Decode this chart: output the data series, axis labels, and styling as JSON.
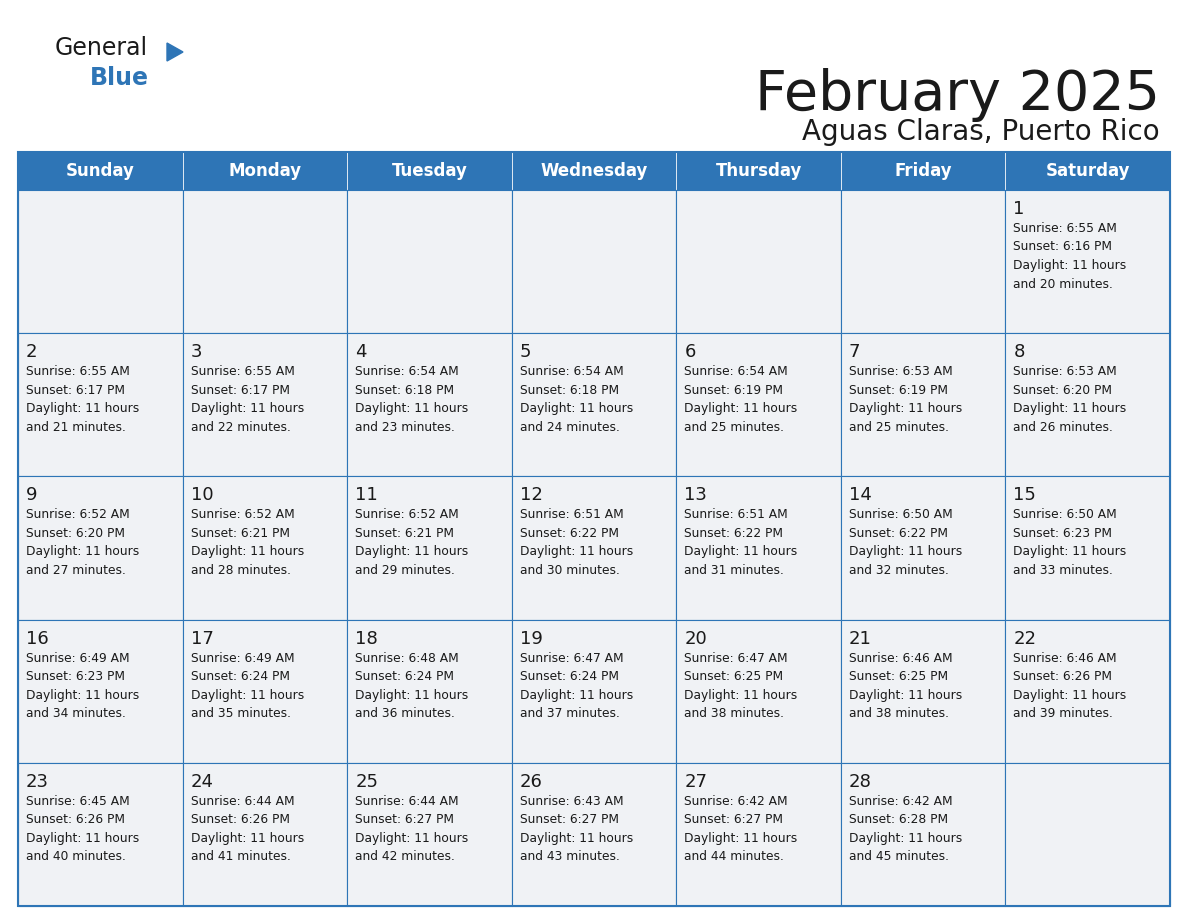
{
  "title": "February 2025",
  "subtitle": "Aguas Claras, Puerto Rico",
  "days_of_week": [
    "Sunday",
    "Monday",
    "Tuesday",
    "Wednesday",
    "Thursday",
    "Friday",
    "Saturday"
  ],
  "header_bg": "#2e75b6",
  "header_text": "#ffffff",
  "cell_bg": "#f0f2f5",
  "cell_bg_alt": "#ffffff",
  "cell_border": "#2e75b6",
  "day_number_color": "#1a1a1a",
  "info_text_color": "#1a1a1a",
  "title_color": "#1a1a1a",
  "logo_general_color": "#1a1a1a",
  "logo_blue_color": "#2e75b6",
  "calendar_data": [
    [
      null,
      null,
      null,
      null,
      null,
      null,
      1
    ],
    [
      2,
      3,
      4,
      5,
      6,
      7,
      8
    ],
    [
      9,
      10,
      11,
      12,
      13,
      14,
      15
    ],
    [
      16,
      17,
      18,
      19,
      20,
      21,
      22
    ],
    [
      23,
      24,
      25,
      26,
      27,
      28,
      null
    ]
  ],
  "sunrise": {
    "1": "6:55 AM",
    "2": "6:55 AM",
    "3": "6:55 AM",
    "4": "6:54 AM",
    "5": "6:54 AM",
    "6": "6:54 AM",
    "7": "6:53 AM",
    "8": "6:53 AM",
    "9": "6:52 AM",
    "10": "6:52 AM",
    "11": "6:52 AM",
    "12": "6:51 AM",
    "13": "6:51 AM",
    "14": "6:50 AM",
    "15": "6:50 AM",
    "16": "6:49 AM",
    "17": "6:49 AM",
    "18": "6:48 AM",
    "19": "6:47 AM",
    "20": "6:47 AM",
    "21": "6:46 AM",
    "22": "6:46 AM",
    "23": "6:45 AM",
    "24": "6:44 AM",
    "25": "6:44 AM",
    "26": "6:43 AM",
    "27": "6:42 AM",
    "28": "6:42 AM"
  },
  "sunset": {
    "1": "6:16 PM",
    "2": "6:17 PM",
    "3": "6:17 PM",
    "4": "6:18 PM",
    "5": "6:18 PM",
    "6": "6:19 PM",
    "7": "6:19 PM",
    "8": "6:20 PM",
    "9": "6:20 PM",
    "10": "6:21 PM",
    "11": "6:21 PM",
    "12": "6:22 PM",
    "13": "6:22 PM",
    "14": "6:22 PM",
    "15": "6:23 PM",
    "16": "6:23 PM",
    "17": "6:24 PM",
    "18": "6:24 PM",
    "19": "6:24 PM",
    "20": "6:25 PM",
    "21": "6:25 PM",
    "22": "6:26 PM",
    "23": "6:26 PM",
    "24": "6:26 PM",
    "25": "6:27 PM",
    "26": "6:27 PM",
    "27": "6:27 PM",
    "28": "6:28 PM"
  },
  "daylight_minutes": {
    "1": 20,
    "2": 21,
    "3": 22,
    "4": 23,
    "5": 24,
    "6": 25,
    "7": 25,
    "8": 26,
    "9": 27,
    "10": 28,
    "11": 29,
    "12": 30,
    "13": 31,
    "14": 32,
    "15": 33,
    "16": 34,
    "17": 35,
    "18": 36,
    "19": 37,
    "20": 38,
    "21": 38,
    "22": 39,
    "23": 40,
    "24": 41,
    "25": 42,
    "26": 43,
    "27": 44,
    "28": 45
  }
}
